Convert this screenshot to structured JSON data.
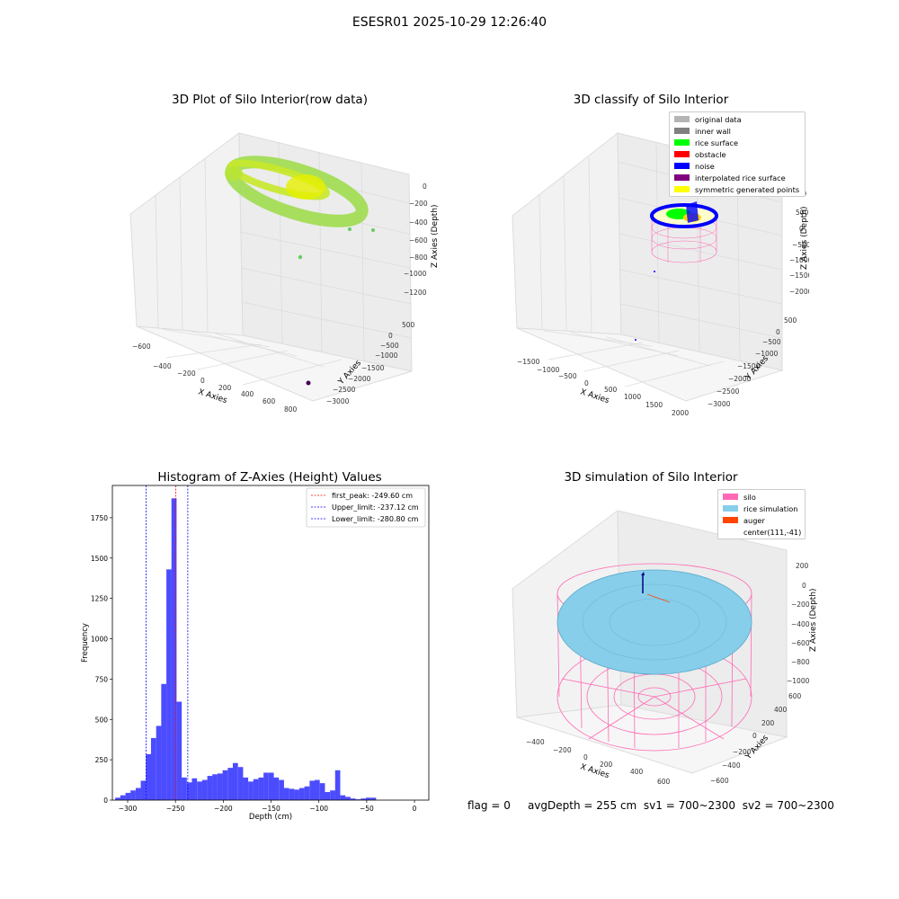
{
  "figure": {
    "suptitle": "ESESR01 2025-10-29 12:26:40",
    "status_line": {
      "flag": "flag = 0",
      "avg_depth": "avgDepth = 255 cm",
      "sv1": "sv1 = 700~2300",
      "sv2": "sv2 = 700~2300"
    }
  },
  "panels": {
    "raw": {
      "title": "3D Plot of Silo Interior(row data)",
      "xlabel": "X Axies",
      "ylabel": "Y Axies",
      "zlabel": "Z Axies (Depth)",
      "xticks": [
        "−600",
        "−400",
        "−200",
        "0",
        "200",
        "400",
        "600",
        "800"
      ],
      "yticks": [
        "500",
        "0",
        "−500",
        "−1000",
        "−1500",
        "−2000",
        "−2500",
        "−3000"
      ],
      "zticks": [
        "0",
        "−200",
        "−400",
        "−600",
        "−800",
        "−1000",
        "−1200"
      ]
    },
    "classify": {
      "title": "3D classify of Silo Interior",
      "xlabel": "X Axies",
      "ylabel": "Y Axies",
      "zlabel": "Z Axies (Depth)",
      "xticks": [
        "−1500",
        "−1000",
        "−500",
        "0",
        "500",
        "1000",
        "1500",
        "2000"
      ],
      "yticks": [
        "500",
        "0",
        "−500",
        "−1000",
        "−1500",
        "−2000",
        "−2500",
        "−3000"
      ],
      "zticks": [
        "1000",
        "500",
        "0",
        "−500",
        "−1000",
        "−1500",
        "−2000"
      ],
      "legend": [
        {
          "label": "original data",
          "color": "#b4b4b4"
        },
        {
          "label": "inner wall",
          "color": "#808080"
        },
        {
          "label": "rice surface",
          "color": "#00ff00"
        },
        {
          "label": "obstacle",
          "color": "#ff0000"
        },
        {
          "label": "noise",
          "color": "#0000ff"
        },
        {
          "label": "interpolated rice surface",
          "color": "#800080"
        },
        {
          "label": "symmetric generated points",
          "color": "#ffff00"
        }
      ]
    },
    "simulation": {
      "title": "3D simulation of Silo Interior",
      "xlabel": "X Axies",
      "ylabel": "Y Axies",
      "zlabel": "Z Axies (Depth)",
      "xticks": [
        "−400",
        "−200",
        "0",
        "200",
        "400",
        "600"
      ],
      "yticks": [
        "600",
        "400",
        "200",
        "0",
        "−200",
        "−400",
        "−600"
      ],
      "zticks": [
        "200",
        "0",
        "−200",
        "−400",
        "−600",
        "−800",
        "−1000"
      ],
      "legend": [
        {
          "label": "silo",
          "color": "#ff69b4"
        },
        {
          "label": "rice simulation",
          "color": "#87ceeb"
        },
        {
          "label": "auger",
          "color": "#ff4500"
        },
        {
          "label": "center(111,-41)",
          "color": ""
        }
      ]
    }
  },
  "chart_data": {
    "type": "bar",
    "title": "Histogram of Z-Axies (Height) Values",
    "xlabel": "Depth (cm)",
    "ylabel": "Frequency",
    "bar_color": "#0000ff",
    "xlim": [
      -316,
      15
    ],
    "ylim": [
      0,
      1950
    ],
    "xticks": [
      -300,
      -250,
      -200,
      -150,
      -100,
      -50,
      0
    ],
    "xtick_labels": [
      "−300",
      "−250",
      "−200",
      "−150",
      "−100",
      "−50",
      "0"
    ],
    "yticks": [
      0,
      250,
      500,
      750,
      1000,
      1250,
      1500,
      1750
    ],
    "ytick_labels": [
      "0",
      "250",
      "500",
      "750",
      "1000",
      "1250",
      "1500",
      "1750"
    ],
    "bin_width": 5.35,
    "bins": [
      {
        "x0": -313.0,
        "v": 15
      },
      {
        "x0": -307.7,
        "v": 30
      },
      {
        "x0": -302.3,
        "v": 45
      },
      {
        "x0": -297.0,
        "v": 60
      },
      {
        "x0": -291.6,
        "v": 75
      },
      {
        "x0": -286.3,
        "v": 120
      },
      {
        "x0": -280.9,
        "v": 285
      },
      {
        "x0": -275.6,
        "v": 385
      },
      {
        "x0": -270.2,
        "v": 460
      },
      {
        "x0": -264.9,
        "v": 720
      },
      {
        "x0": -259.5,
        "v": 1430
      },
      {
        "x0": -254.2,
        "v": 1870
      },
      {
        "x0": -248.8,
        "v": 610
      },
      {
        "x0": -243.5,
        "v": 140
      },
      {
        "x0": -238.1,
        "v": 110
      },
      {
        "x0": -232.8,
        "v": 135
      },
      {
        "x0": -227.4,
        "v": 115
      },
      {
        "x0": -222.1,
        "v": 125
      },
      {
        "x0": -216.7,
        "v": 150
      },
      {
        "x0": -211.4,
        "v": 160
      },
      {
        "x0": -206.0,
        "v": 165
      },
      {
        "x0": -200.7,
        "v": 185
      },
      {
        "x0": -195.3,
        "v": 200
      },
      {
        "x0": -190.0,
        "v": 230
      },
      {
        "x0": -184.6,
        "v": 205
      },
      {
        "x0": -179.3,
        "v": 140
      },
      {
        "x0": -173.9,
        "v": 115
      },
      {
        "x0": -168.6,
        "v": 130
      },
      {
        "x0": -163.2,
        "v": 140
      },
      {
        "x0": -157.9,
        "v": 170
      },
      {
        "x0": -152.5,
        "v": 170
      },
      {
        "x0": -147.2,
        "v": 140
      },
      {
        "x0": -141.8,
        "v": 125
      },
      {
        "x0": -136.5,
        "v": 75
      },
      {
        "x0": -131.1,
        "v": 70
      },
      {
        "x0": -125.8,
        "v": 65
      },
      {
        "x0": -120.4,
        "v": 75
      },
      {
        "x0": -115.1,
        "v": 85
      },
      {
        "x0": -109.7,
        "v": 120
      },
      {
        "x0": -104.4,
        "v": 125
      },
      {
        "x0": -99.0,
        "v": 105
      },
      {
        "x0": -93.7,
        "v": 50
      },
      {
        "x0": -88.3,
        "v": 60
      },
      {
        "x0": -83.0,
        "v": 185
      },
      {
        "x0": -77.6,
        "v": 30
      },
      {
        "x0": -72.3,
        "v": 20
      },
      {
        "x0": -66.9,
        "v": 10
      },
      {
        "x0": -61.6,
        "v": 5
      },
      {
        "x0": -56.2,
        "v": 10
      },
      {
        "x0": -50.9,
        "v": 15
      },
      {
        "x0": -45.5,
        "v": 15
      }
    ],
    "vlines": [
      {
        "label": "first_peak: -249.60 cm",
        "x": -249.6,
        "color": "#ff0000"
      },
      {
        "label": "Upper_limit: -237.12 cm",
        "x": -237.12,
        "color": "#0000ff"
      },
      {
        "label": "Lower_limit: -280.80 cm",
        "x": -280.8,
        "color": "#0000ff"
      }
    ],
    "legend_position": "top-right"
  }
}
